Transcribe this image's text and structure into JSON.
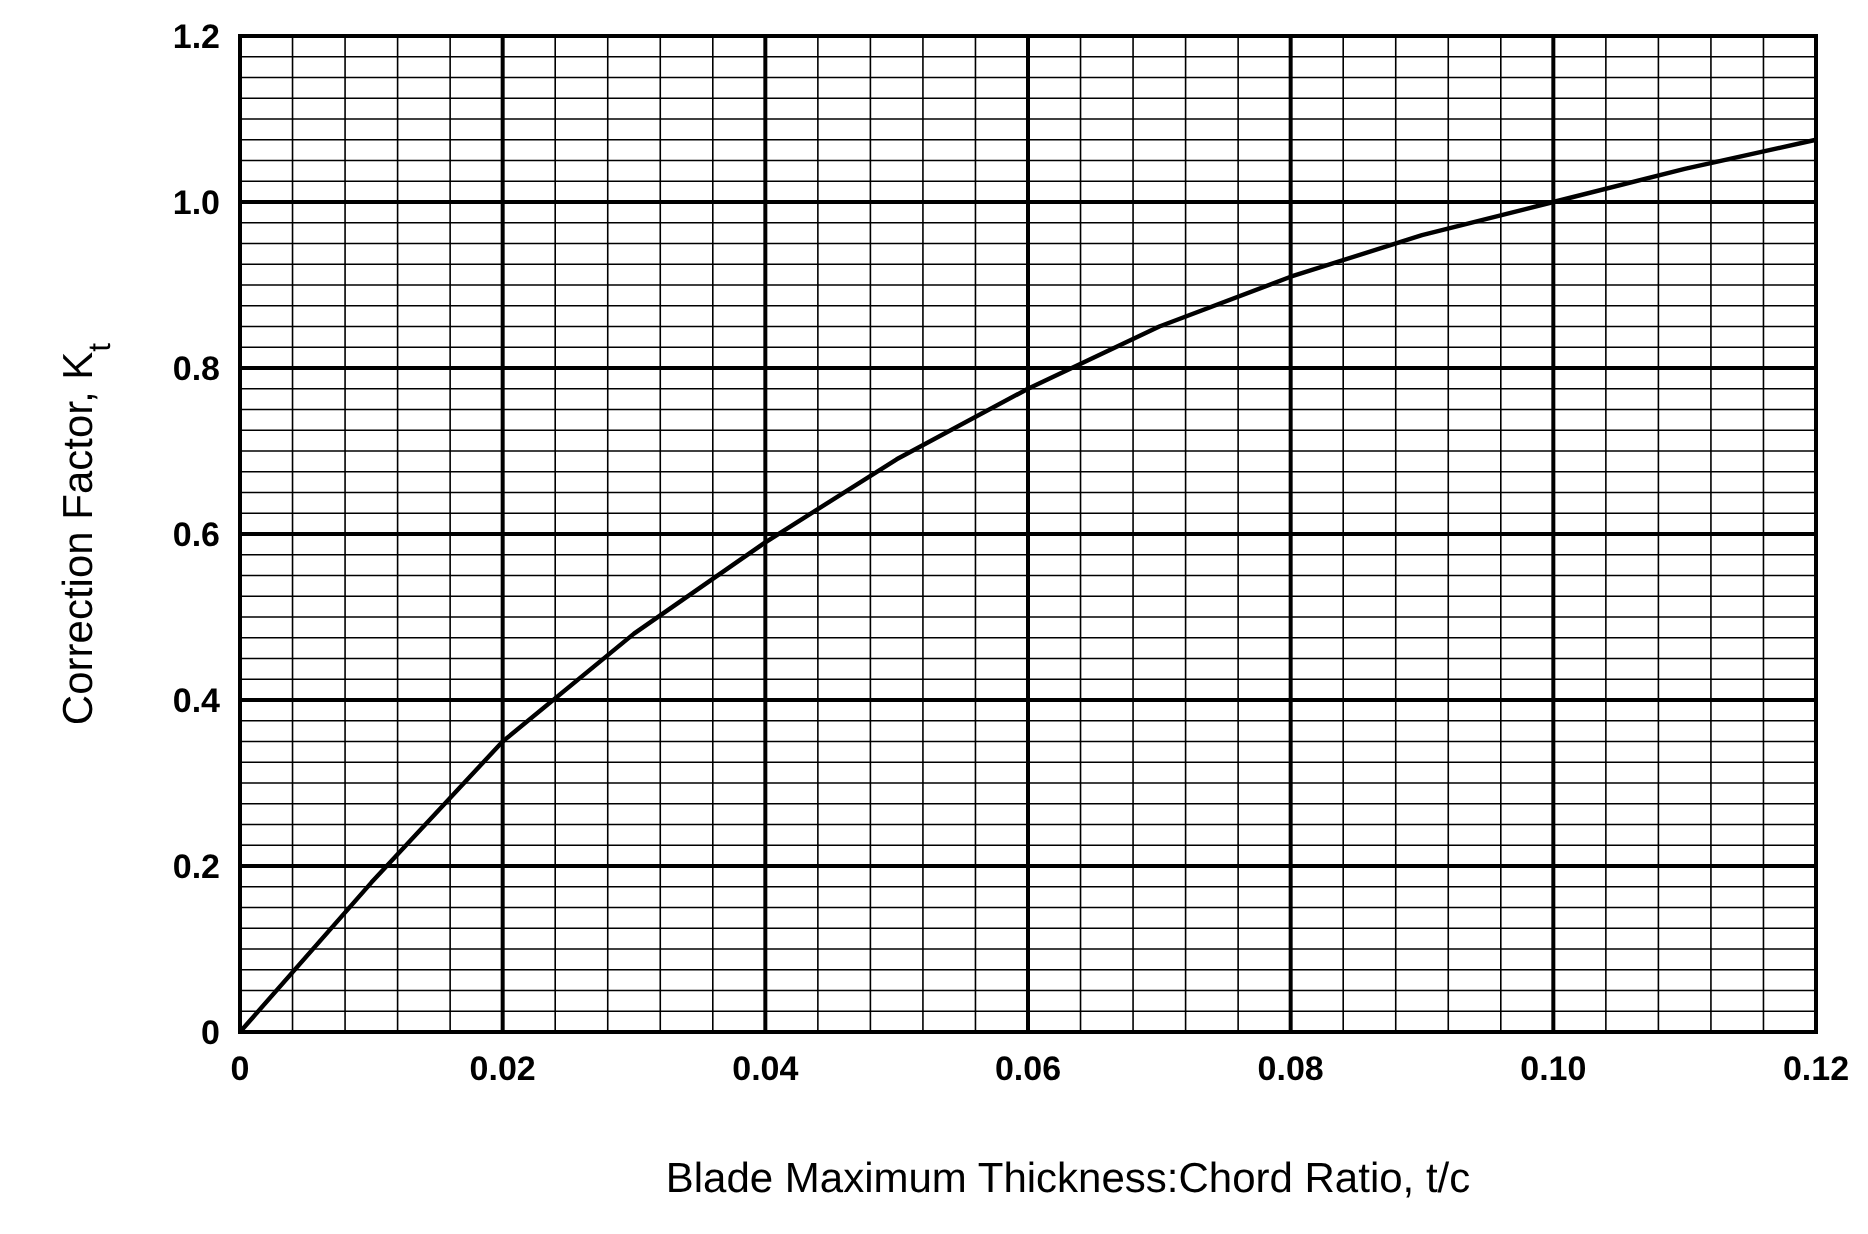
{
  "chart_data": {
    "type": "line",
    "xlabel": "Blade Maximum Thickness:Chord Ratio, t/c",
    "ylabel": "Correction Factor, K$_{t}$",
    "x": [
      0,
      0.01,
      0.02,
      0.03,
      0.04,
      0.05,
      0.06,
      0.07,
      0.08,
      0.09,
      0.1,
      0.11,
      0.12
    ],
    "series": [
      {
        "color": "#000000",
        "values": [
          0,
          0.18,
          0.35,
          0.48,
          0.59,
          0.69,
          0.775,
          0.85,
          0.91,
          0.96,
          1.0,
          1.04,
          1.075
        ]
      }
    ],
    "xlim": [
      0,
      0.12
    ],
    "ylim": [
      0,
      1.2
    ],
    "xticks": [
      0,
      {
        "value": 0.004,
        "label": null
      },
      {
        "value": 0.008,
        "label": null
      },
      {
        "value": 0.012,
        "label": null
      },
      {
        "value": 0.016,
        "label": null
      },
      0.02,
      {
        "value": 0.024,
        "label": null
      },
      {
        "value": 0.028,
        "label": null
      },
      {
        "value": 0.032,
        "label": null
      },
      {
        "value": 0.036,
        "label": null
      },
      0.04,
      {
        "value": 0.044,
        "label": null
      },
      {
        "value": 0.048,
        "label": null
      },
      {
        "value": 0.052,
        "label": null
      },
      {
        "value": 0.056,
        "label": null
      },
      0.06,
      {
        "value": 0.064,
        "label": null
      },
      {
        "value": 0.068,
        "label": null
      },
      {
        "value": 0.072,
        "label": null
      },
      {
        "value": 0.076,
        "label": null
      },
      0.08,
      {
        "value": 0.084,
        "label": null
      },
      {
        "value": 0.088,
        "label": null
      },
      {
        "value": 0.092,
        "label": null
      },
      {
        "value": 0.096,
        "label": null
      },
      {
        "value": 0.1,
        "label": "0.10"
      },
      {
        "value": 0.104,
        "label": null
      },
      {
        "value": 0.108,
        "label": null
      },
      {
        "value": 0.112,
        "label": null
      },
      {
        "value": 0.116,
        "label": null
      },
      0.12
    ],
    "yticks": [
      0,
      {
        "value": 0.025,
        "label": null
      },
      {
        "value": 0.05,
        "label": null
      },
      {
        "value": 0.075,
        "label": null
      },
      {
        "value": 0.1,
        "label": null
      },
      {
        "value": 0.125,
        "label": null
      },
      {
        "value": 0.15,
        "label": null
      },
      {
        "value": 0.175,
        "label": null
      },
      0.2,
      {
        "value": 0.225,
        "label": null
      },
      {
        "value": 0.25,
        "label": null
      },
      {
        "value": 0.275,
        "label": null
      },
      {
        "value": 0.3,
        "label": null
      },
      {
        "value": 0.325,
        "label": null
      },
      {
        "value": 0.35,
        "label": null
      },
      {
        "value": 0.375,
        "label": null
      },
      0.4,
      {
        "value": 0.425,
        "label": null
      },
      {
        "value": 0.45,
        "label": null
      },
      {
        "value": 0.475,
        "label": null
      },
      {
        "value": 0.5,
        "label": null
      },
      {
        "value": 0.525,
        "label": null
      },
      {
        "value": 0.55,
        "label": null
      },
      {
        "value": 0.575,
        "label": null
      },
      0.6,
      {
        "value": 0.625,
        "label": null
      },
      {
        "value": 0.65,
        "label": null
      },
      {
        "value": 0.675,
        "label": null
      },
      {
        "value": 0.7,
        "label": null
      },
      {
        "value": 0.725,
        "label": null
      },
      {
        "value": 0.75,
        "label": null
      },
      {
        "value": 0.775,
        "label": null
      },
      0.8,
      {
        "value": 0.825,
        "label": null
      },
      {
        "value": 0.85,
        "label": null
      },
      {
        "value": 0.875,
        "label": null
      },
      {
        "value": 0.9,
        "label": null
      },
      {
        "value": 0.925,
        "label": null
      },
      {
        "value": 0.95,
        "label": null
      },
      {
        "value": 0.975,
        "label": null
      },
      {
        "value": 1.0,
        "label": "1.0"
      },
      {
        "value": 1.025,
        "label": null
      },
      {
        "value": 1.05,
        "label": null
      },
      {
        "value": 1.075,
        "label": null
      },
      {
        "value": 1.1,
        "label": null
      },
      {
        "value": 1.125,
        "label": null
      },
      {
        "value": 1.15,
        "label": null
      },
      {
        "value": 1.175,
        "label": null
      },
      1.2
    ],
    "grid": true,
    "line_style": "solid",
    "marker": "none"
  }
}
